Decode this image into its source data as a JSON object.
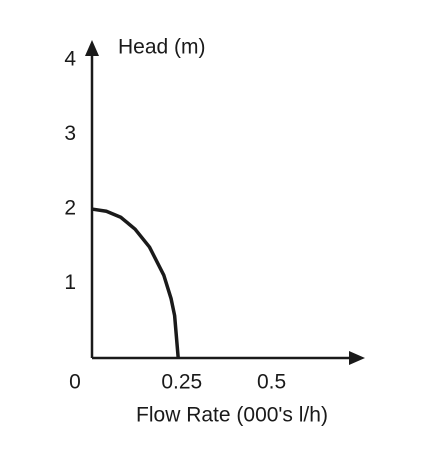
{
  "chart_data": {
    "type": "line",
    "x_label": "Flow Rate (000's l/h)",
    "y_label": "Head (m)",
    "x": [
      0,
      0.04,
      0.08,
      0.12,
      0.16,
      0.2,
      0.22,
      0.23,
      0.24
    ],
    "series": [
      {
        "color": "#1a1a1a",
        "values": [
          2,
          1.97,
          1.89,
          1.73,
          1.49,
          1.11,
          0.8,
          0.57,
          0
        ]
      }
    ],
    "xlim": [
      0,
      0.76
    ],
    "ylim": [
      0,
      4.27
    ],
    "xticks": [
      0,
      0.25,
      0.5
    ],
    "yticks": [
      1,
      2,
      3,
      4
    ]
  }
}
